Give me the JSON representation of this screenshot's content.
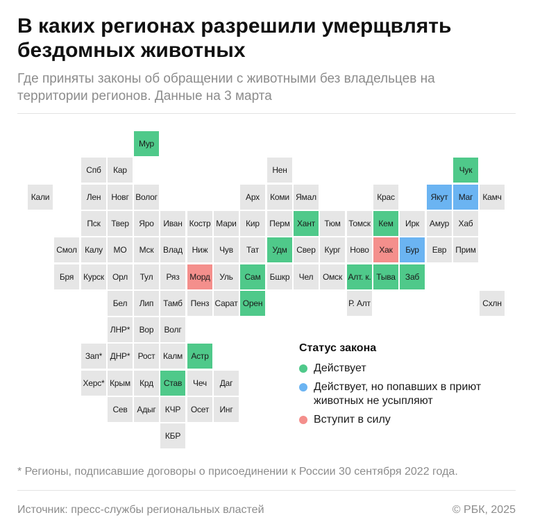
{
  "header": {
    "title": "В каких регионах разрешили умерщвлять бездомных животных",
    "subtitle": "Где приняты законы об обращении с животными без владельцев на территории регионов. Данные на 3 марта"
  },
  "legend": {
    "title": "Статус закона",
    "items": [
      {
        "status": "active",
        "label": "Действует",
        "color": "#4fc98a"
      },
      {
        "status": "nocull",
        "label": "Действует, но попавших в приют животных не усыпляют",
        "color": "#6bb4f2"
      },
      {
        "status": "upcoming",
        "label": "Вступит в силу",
        "color": "#f48f8c"
      }
    ]
  },
  "colors": {
    "none": "#e6e6e6",
    "active": "#4fc98a",
    "nocull": "#6bb4f2",
    "upcoming": "#f48f8c"
  },
  "regions": [
    {
      "label": "Мур",
      "col": 5,
      "row": 0,
      "status": "active"
    },
    {
      "label": "Спб",
      "col": 3,
      "row": 1,
      "status": "none"
    },
    {
      "label": "Кар",
      "col": 4,
      "row": 1,
      "status": "none"
    },
    {
      "label": "Нен",
      "col": 10,
      "row": 1,
      "status": "none"
    },
    {
      "label": "Чук",
      "col": 17,
      "row": 1,
      "status": "active"
    },
    {
      "label": "Кали",
      "col": 1,
      "row": 2,
      "status": "none"
    },
    {
      "label": "Лен",
      "col": 3,
      "row": 2,
      "status": "none"
    },
    {
      "label": "Новг",
      "col": 4,
      "row": 2,
      "status": "none"
    },
    {
      "label": "Волог",
      "col": 5,
      "row": 2,
      "status": "none"
    },
    {
      "label": "Арх",
      "col": 9,
      "row": 2,
      "status": "none"
    },
    {
      "label": "Коми",
      "col": 10,
      "row": 2,
      "status": "none"
    },
    {
      "label": "Ямал",
      "col": 11,
      "row": 2,
      "status": "none"
    },
    {
      "label": "Крас",
      "col": 14,
      "row": 2,
      "status": "none"
    },
    {
      "label": "Якут",
      "col": 16,
      "row": 2,
      "status": "nocull"
    },
    {
      "label": "Маг",
      "col": 17,
      "row": 2,
      "status": "nocull"
    },
    {
      "label": "Камч",
      "col": 18,
      "row": 2,
      "status": "none"
    },
    {
      "label": "Пск",
      "col": 3,
      "row": 3,
      "status": "none"
    },
    {
      "label": "Твер",
      "col": 4,
      "row": 3,
      "status": "none"
    },
    {
      "label": "Яро",
      "col": 5,
      "row": 3,
      "status": "none"
    },
    {
      "label": "Иван",
      "col": 6,
      "row": 3,
      "status": "none"
    },
    {
      "label": "Костр",
      "col": 7,
      "row": 3,
      "status": "none"
    },
    {
      "label": "Мари",
      "col": 8,
      "row": 3,
      "status": "none"
    },
    {
      "label": "Кир",
      "col": 9,
      "row": 3,
      "status": "none"
    },
    {
      "label": "Перм",
      "col": 10,
      "row": 3,
      "status": "none"
    },
    {
      "label": "Хант",
      "col": 11,
      "row": 3,
      "status": "active"
    },
    {
      "label": "Тюм",
      "col": 12,
      "row": 3,
      "status": "none"
    },
    {
      "label": "Томск",
      "col": 13,
      "row": 3,
      "status": "none"
    },
    {
      "label": "Кем",
      "col": 14,
      "row": 3,
      "status": "active"
    },
    {
      "label": "Ирк",
      "col": 15,
      "row": 3,
      "status": "none"
    },
    {
      "label": "Амур",
      "col": 16,
      "row": 3,
      "status": "none"
    },
    {
      "label": "Хаб",
      "col": 17,
      "row": 3,
      "status": "none"
    },
    {
      "label": "Смол",
      "col": 2,
      "row": 4,
      "status": "none"
    },
    {
      "label": "Калу",
      "col": 3,
      "row": 4,
      "status": "none"
    },
    {
      "label": "МО",
      "col": 4,
      "row": 4,
      "status": "none"
    },
    {
      "label": "Мск",
      "col": 5,
      "row": 4,
      "status": "none"
    },
    {
      "label": "Влад",
      "col": 6,
      "row": 4,
      "status": "none"
    },
    {
      "label": "Ниж",
      "col": 7,
      "row": 4,
      "status": "none"
    },
    {
      "label": "Чув",
      "col": 8,
      "row": 4,
      "status": "none"
    },
    {
      "label": "Тат",
      "col": 9,
      "row": 4,
      "status": "none"
    },
    {
      "label": "Удм",
      "col": 10,
      "row": 4,
      "status": "active"
    },
    {
      "label": "Свер",
      "col": 11,
      "row": 4,
      "status": "none"
    },
    {
      "label": "Кург",
      "col": 12,
      "row": 4,
      "status": "none"
    },
    {
      "label": "Ново",
      "col": 13,
      "row": 4,
      "status": "none"
    },
    {
      "label": "Хак",
      "col": 14,
      "row": 4,
      "status": "upcoming"
    },
    {
      "label": "Бур",
      "col": 15,
      "row": 4,
      "status": "nocull"
    },
    {
      "label": "Евр",
      "col": 16,
      "row": 4,
      "status": "none"
    },
    {
      "label": "Прим",
      "col": 17,
      "row": 4,
      "status": "none"
    },
    {
      "label": "Бря",
      "col": 2,
      "row": 5,
      "status": "none"
    },
    {
      "label": "Курск",
      "col": 3,
      "row": 5,
      "status": "none"
    },
    {
      "label": "Орл",
      "col": 4,
      "row": 5,
      "status": "none"
    },
    {
      "label": "Тул",
      "col": 5,
      "row": 5,
      "status": "none"
    },
    {
      "label": "Ряз",
      "col": 6,
      "row": 5,
      "status": "none"
    },
    {
      "label": "Морд",
      "col": 7,
      "row": 5,
      "status": "upcoming"
    },
    {
      "label": "Уль",
      "col": 8,
      "row": 5,
      "status": "none"
    },
    {
      "label": "Сам",
      "col": 9,
      "row": 5,
      "status": "active"
    },
    {
      "label": "Бшкр",
      "col": 10,
      "row": 5,
      "status": "none"
    },
    {
      "label": "Чел",
      "col": 11,
      "row": 5,
      "status": "none"
    },
    {
      "label": "Омск",
      "col": 12,
      "row": 5,
      "status": "none"
    },
    {
      "label": "Алт. к.",
      "col": 13,
      "row": 5,
      "status": "active"
    },
    {
      "label": "Тыва",
      "col": 14,
      "row": 5,
      "status": "active"
    },
    {
      "label": "Заб",
      "col": 15,
      "row": 5,
      "status": "active"
    },
    {
      "label": "Бел",
      "col": 4,
      "row": 6,
      "status": "none"
    },
    {
      "label": "Лип",
      "col": 5,
      "row": 6,
      "status": "none"
    },
    {
      "label": "Тамб",
      "col": 6,
      "row": 6,
      "status": "none"
    },
    {
      "label": "Пенз",
      "col": 7,
      "row": 6,
      "status": "none"
    },
    {
      "label": "Сарат",
      "col": 8,
      "row": 6,
      "status": "none"
    },
    {
      "label": "Орен",
      "col": 9,
      "row": 6,
      "status": "active"
    },
    {
      "label": "Р. Алт",
      "col": 13,
      "row": 6,
      "status": "none"
    },
    {
      "label": "Схлн",
      "col": 18,
      "row": 6,
      "status": "none"
    },
    {
      "label": "ЛНР*",
      "col": 4,
      "row": 7,
      "status": "none"
    },
    {
      "label": "Вор",
      "col": 5,
      "row": 7,
      "status": "none"
    },
    {
      "label": "Волг",
      "col": 6,
      "row": 7,
      "status": "none"
    },
    {
      "label": "Зап*",
      "col": 3,
      "row": 8,
      "status": "none"
    },
    {
      "label": "ДНР*",
      "col": 4,
      "row": 8,
      "status": "none"
    },
    {
      "label": "Рост",
      "col": 5,
      "row": 8,
      "status": "none"
    },
    {
      "label": "Калм",
      "col": 6,
      "row": 8,
      "status": "none"
    },
    {
      "label": "Астр",
      "col": 7,
      "row": 8,
      "status": "active"
    },
    {
      "label": "Херс*",
      "col": 3,
      "row": 9,
      "status": "none"
    },
    {
      "label": "Крым",
      "col": 4,
      "row": 9,
      "status": "none"
    },
    {
      "label": "Крд",
      "col": 5,
      "row": 9,
      "status": "none"
    },
    {
      "label": "Став",
      "col": 6,
      "row": 9,
      "status": "active"
    },
    {
      "label": "Чеч",
      "col": 7,
      "row": 9,
      "status": "none"
    },
    {
      "label": "Даг",
      "col": 8,
      "row": 9,
      "status": "none"
    },
    {
      "label": "Сев",
      "col": 4,
      "row": 10,
      "status": "none"
    },
    {
      "label": "Адыг",
      "col": 5,
      "row": 10,
      "status": "none"
    },
    {
      "label": "КЧР",
      "col": 6,
      "row": 10,
      "status": "none"
    },
    {
      "label": "Осет",
      "col": 7,
      "row": 10,
      "status": "none"
    },
    {
      "label": "Инг",
      "col": 8,
      "row": 10,
      "status": "none"
    },
    {
      "label": "КБР",
      "col": 6,
      "row": 11,
      "status": "none"
    }
  ],
  "footnote": "* Регионы, подписавшие договоры о присоединении к России 30 сентября 2022 года.",
  "source": "Источник: пресс-службы региональных властей",
  "copyright": "© РБК, 2025"
}
